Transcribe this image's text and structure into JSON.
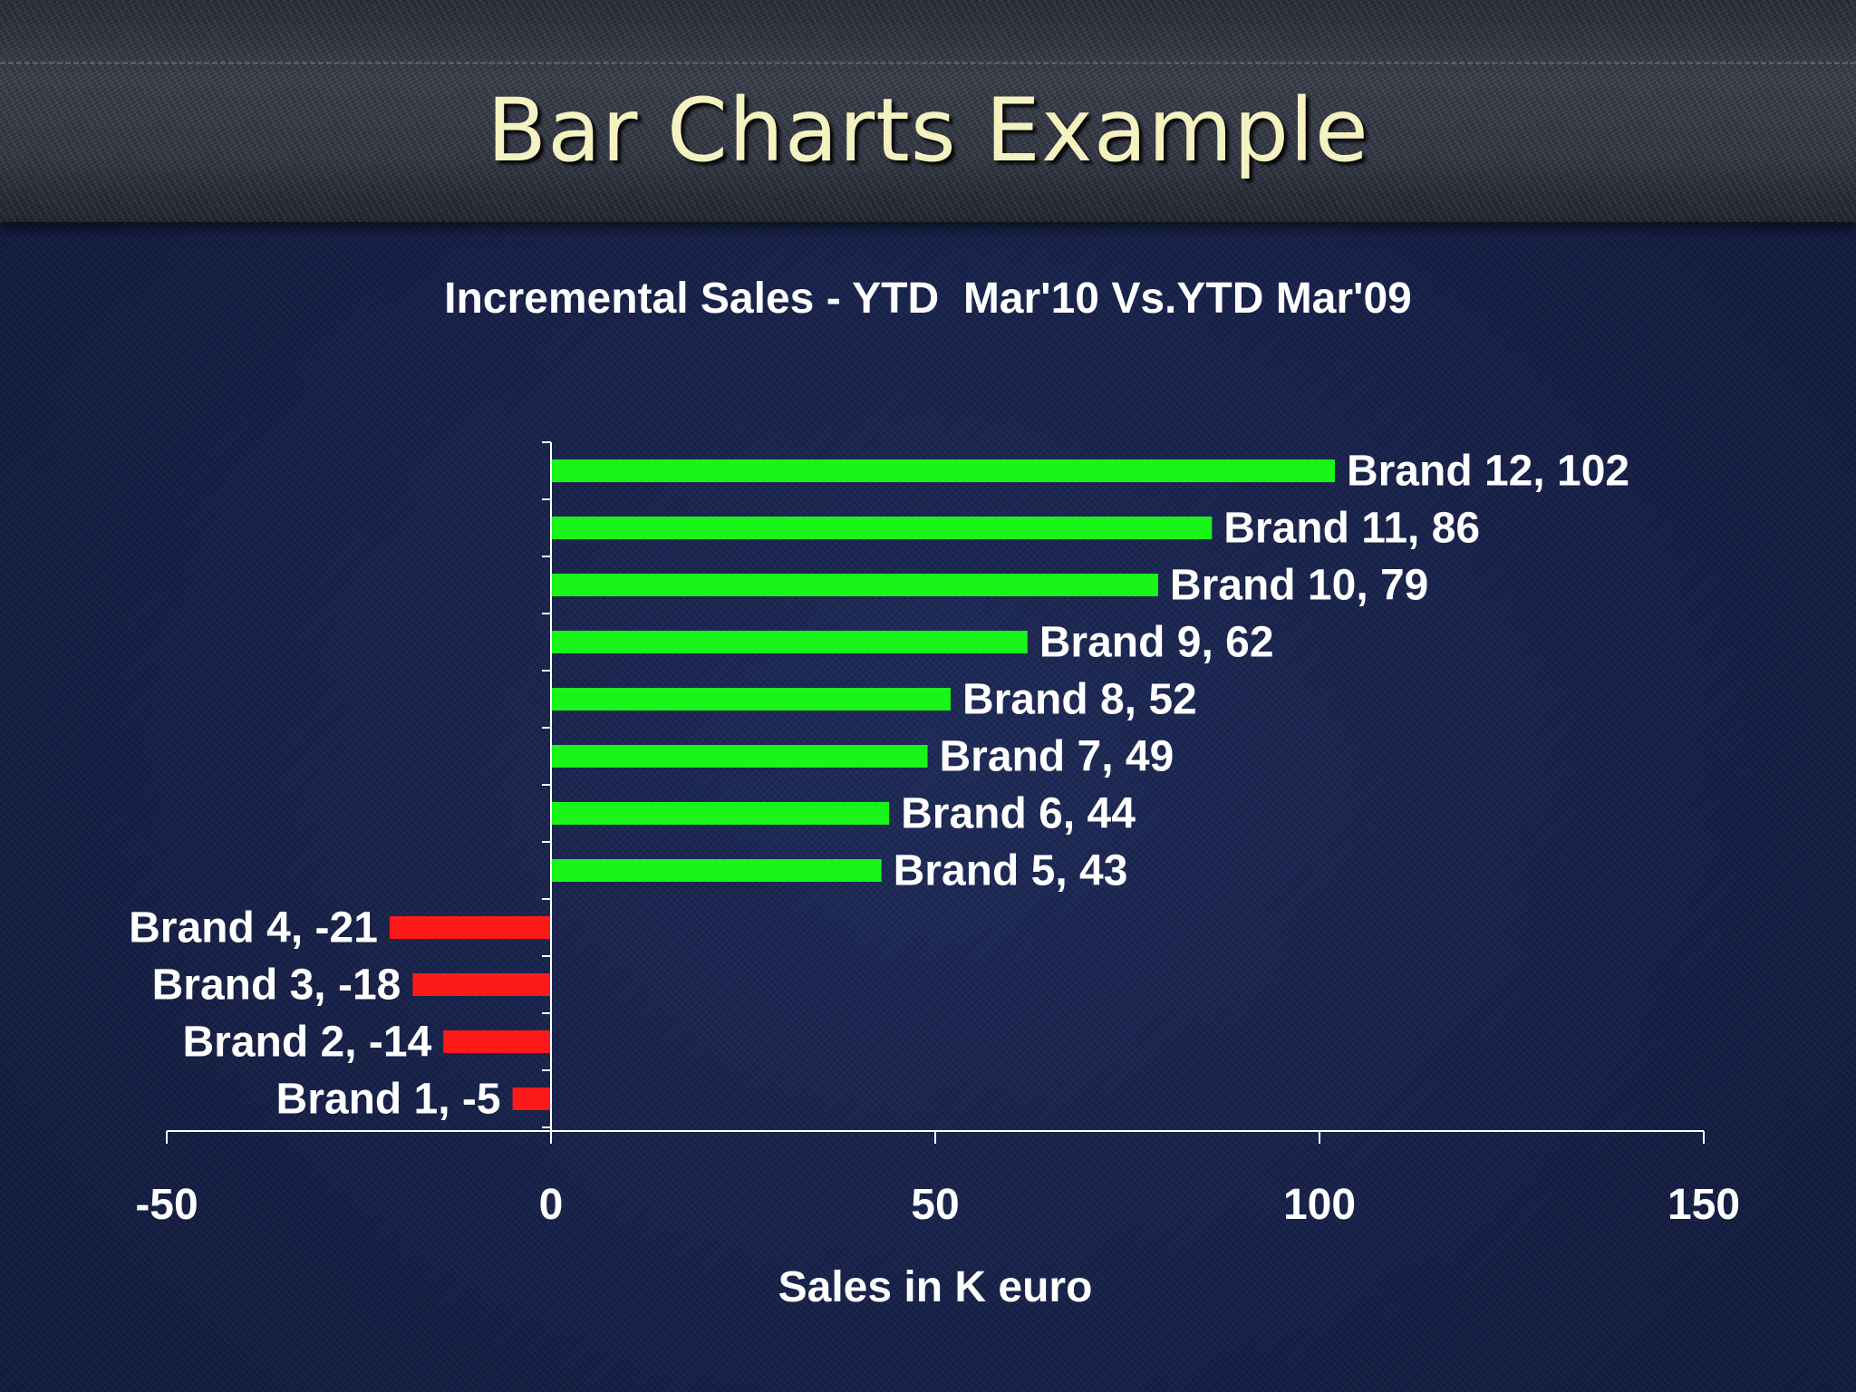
{
  "slide": {
    "title": "Bar Charts Example"
  },
  "chart_data": {
    "type": "bar",
    "orientation": "horizontal",
    "title": "Incremental Sales - YTD  Mar'10 Vs.YTD Mar'09",
    "xlabel": "Sales in K euro",
    "ylabel": "",
    "xlim": [
      -50,
      150
    ],
    "xticks": [
      -50,
      0,
      50,
      100,
      150
    ],
    "xtick_labels": [
      "-50",
      "0",
      "50",
      "100",
      "150"
    ],
    "grid": false,
    "legend": "none",
    "categories": [
      "Brand 1",
      "Brand 2",
      "Brand 3",
      "Brand 4",
      "Brand 5",
      "Brand 6",
      "Brand 7",
      "Brand 8",
      "Brand 9",
      "Brand 10",
      "Brand 11",
      "Brand 12"
    ],
    "values": [
      -5,
      -14,
      -18,
      -21,
      43,
      44,
      49,
      52,
      62,
      79,
      86,
      102
    ],
    "data_labels": [
      "Brand 1, -5",
      "Brand 2, -14",
      "Brand 3, -18",
      "Brand 4, -21",
      "Brand 5, 43",
      "Brand 6, 44",
      "Brand 7, 49",
      "Brand 8, 52",
      "Brand 9, 62",
      "Brand 10, 79",
      "Brand 11, 86",
      "Brand 12, 102"
    ],
    "colors": {
      "positive": "#19f519",
      "negative": "#ff1a1a",
      "axis": "#ffffff"
    }
  }
}
